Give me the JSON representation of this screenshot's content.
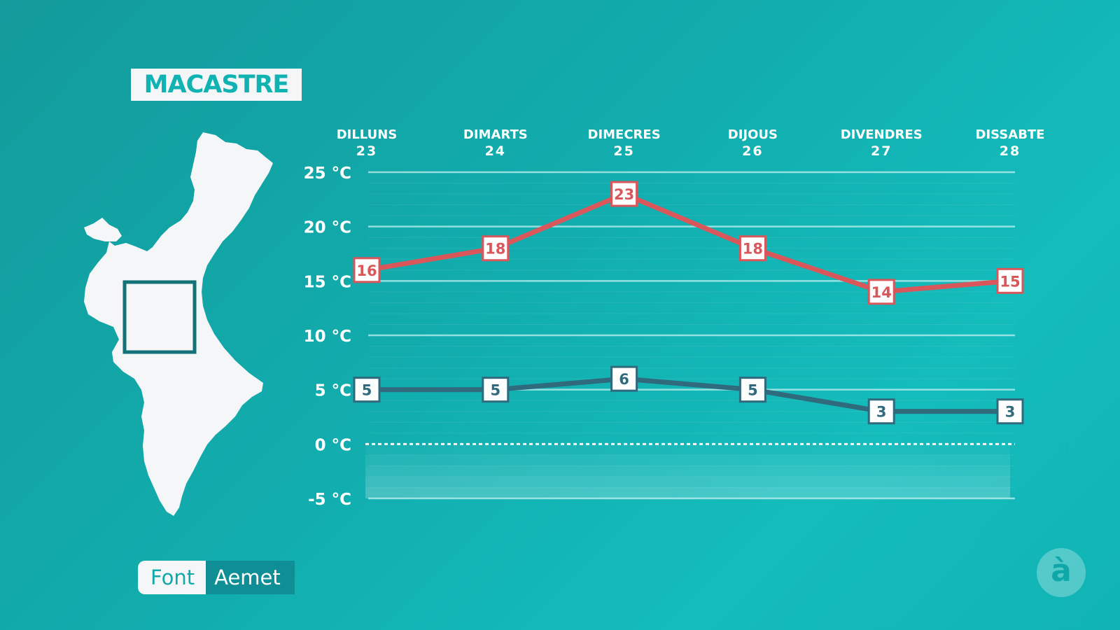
{
  "location": "MACASTRE",
  "source": {
    "label": "Font",
    "value": "Aemet"
  },
  "logo_glyph": "à",
  "colors": {
    "max": "#d9565a",
    "min": "#2f6a7d",
    "background": "#13aeae"
  },
  "chart_data": {
    "type": "line",
    "categories": [
      {
        "day": "DILLUNS",
        "date": "23"
      },
      {
        "day": "DIMARTS",
        "date": "24"
      },
      {
        "day": "DIMECRES",
        "date": "25"
      },
      {
        "day": "DIJOUS",
        "date": "26"
      },
      {
        "day": "DIVENDRES",
        "date": "27"
      },
      {
        "day": "DISSABTE",
        "date": "28"
      }
    ],
    "series": [
      {
        "key": "max",
        "values": [
          16,
          18,
          23,
          18,
          14,
          15
        ]
      },
      {
        "key": "min",
        "values": [
          5,
          5,
          6,
          5,
          3,
          3
        ]
      }
    ],
    "yticks": [
      {
        "value": 25,
        "label": "25 °C"
      },
      {
        "value": 20,
        "label": "20 °C"
      },
      {
        "value": 15,
        "label": "15 °C"
      },
      {
        "value": 10,
        "label": "10 °C"
      },
      {
        "value": 5,
        "label": "5 °C"
      },
      {
        "value": 0,
        "label": "0 °C"
      },
      {
        "value": -5,
        "label": "-5 °C"
      }
    ],
    "ylim": [
      -5,
      25
    ],
    "zero_line": "dashed",
    "grid": true
  }
}
